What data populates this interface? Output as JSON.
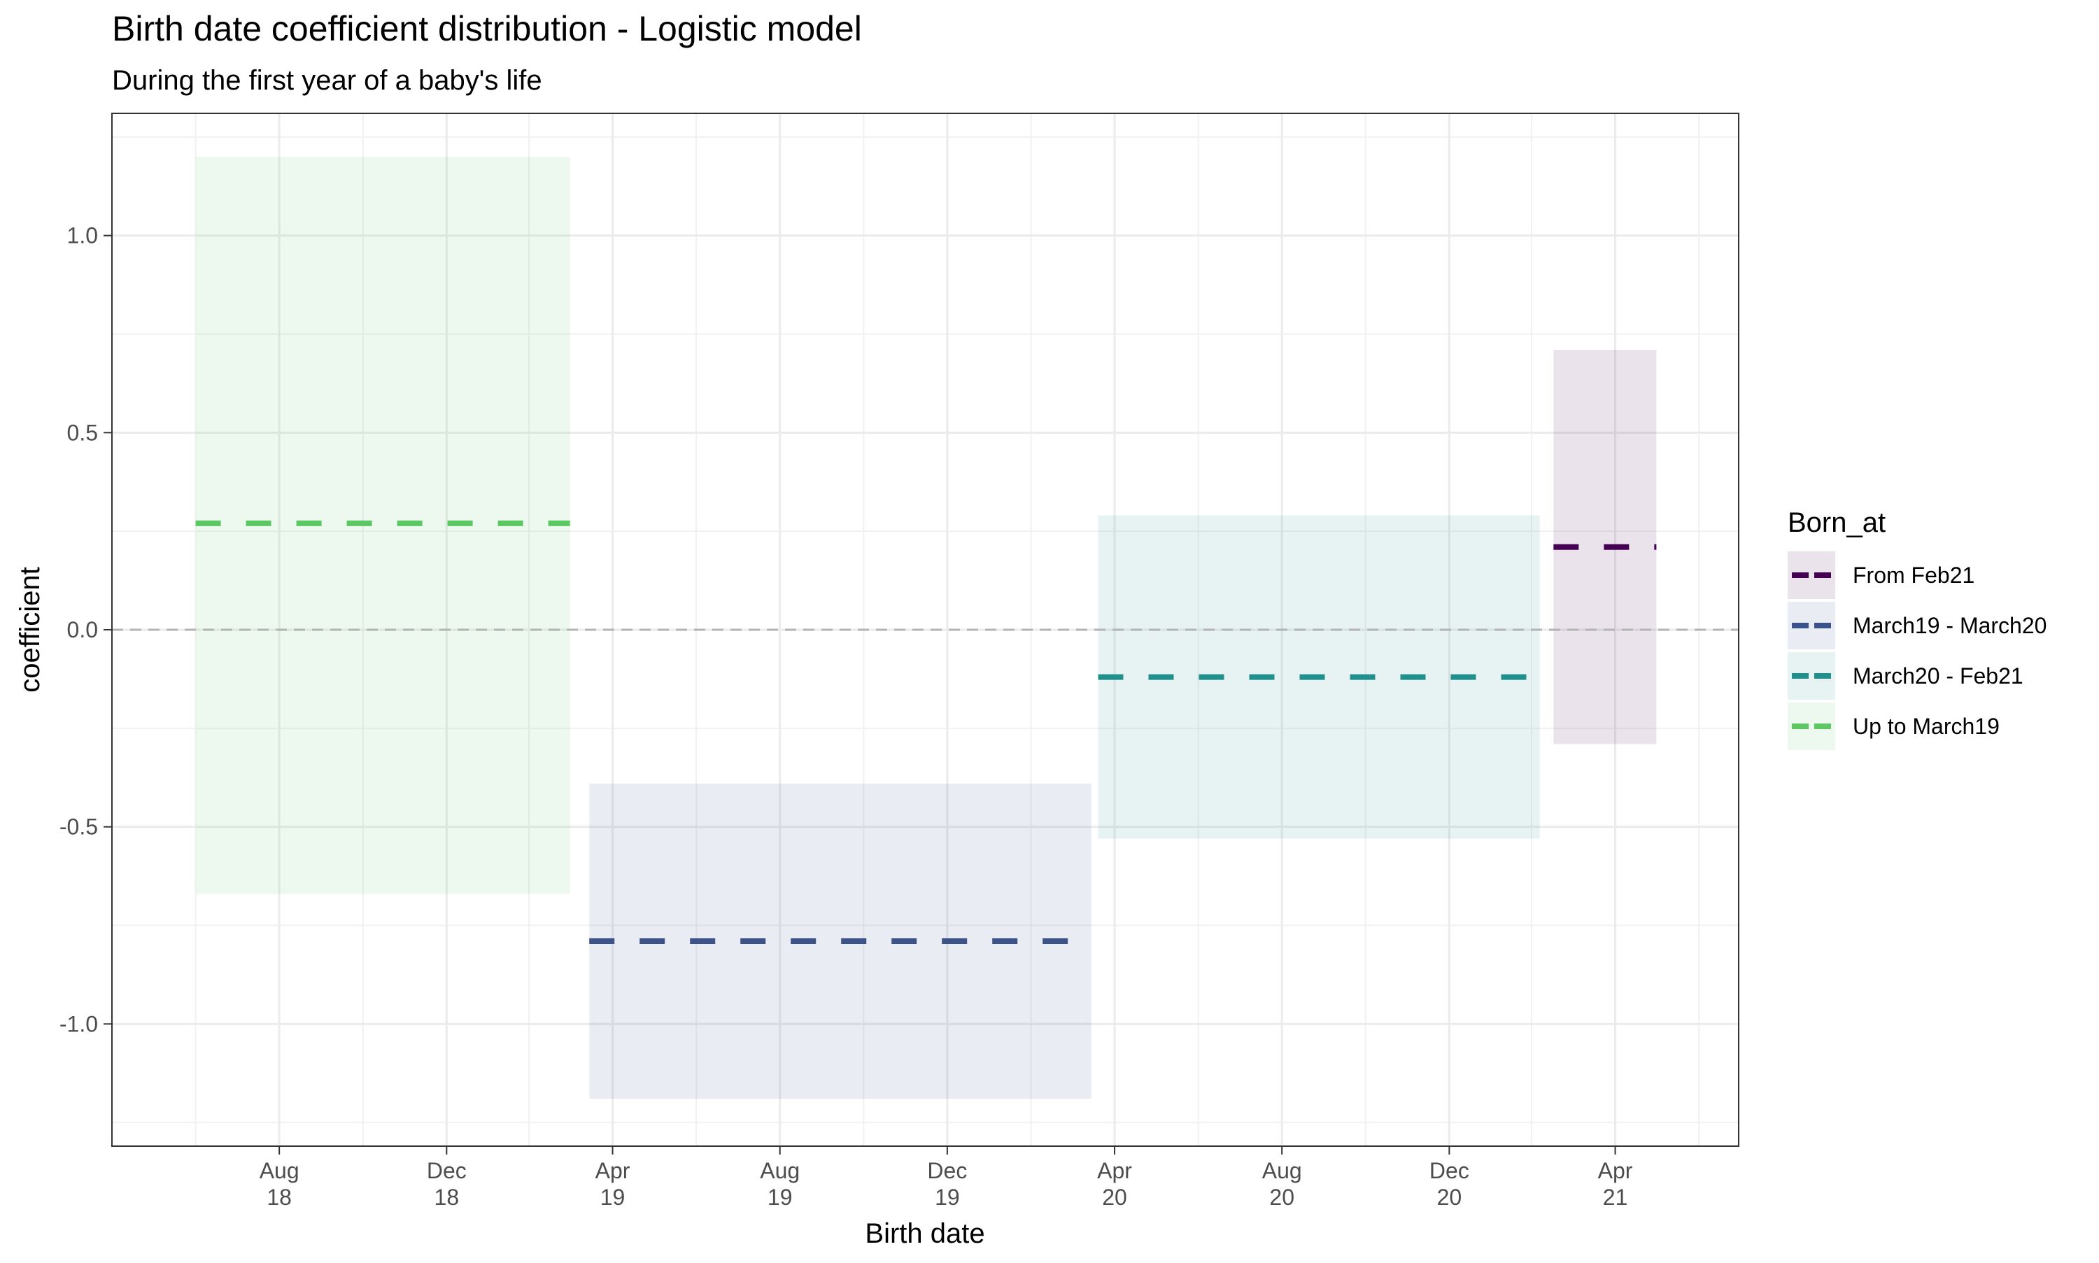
{
  "chart_data": {
    "type": "area",
    "title": "Birth date coefficient distribution - Logistic model",
    "subtitle": "During the first year of a baby's life",
    "xlabel": "Birth date",
    "ylabel": "coefficient",
    "xlim": [
      "2018-04-01",
      "2021-06-30"
    ],
    "ylim": [
      -1.31,
      1.31
    ],
    "y_ticks": [
      1.0,
      0.5,
      0.0,
      -0.5,
      -1.0
    ],
    "y_tick_labels": [
      "1.0",
      "0.5",
      "0.0",
      "-0.5",
      "-1.0"
    ],
    "x_ticks": [
      {
        "date": "2018-08-01",
        "month": "Aug",
        "year": "18"
      },
      {
        "date": "2018-12-01",
        "month": "Dec",
        "year": "18"
      },
      {
        "date": "2019-04-01",
        "month": "Apr",
        "year": "19"
      },
      {
        "date": "2019-08-01",
        "month": "Aug",
        "year": "19"
      },
      {
        "date": "2019-12-01",
        "month": "Dec",
        "year": "19"
      },
      {
        "date": "2020-04-01",
        "month": "Apr",
        "year": "20"
      },
      {
        "date": "2020-08-01",
        "month": "Aug",
        "year": "20"
      },
      {
        "date": "2020-12-01",
        "month": "Dec",
        "year": "20"
      },
      {
        "date": "2021-04-01",
        "month": "Apr",
        "year": "21"
      }
    ],
    "grid": true,
    "reference_line": {
      "y": 0.0,
      "style": "dashed"
    },
    "legend": {
      "title": "Born_at",
      "position": "right"
    },
    "series": [
      {
        "name": "From Feb21",
        "color": "#440154",
        "x_start": "2021-02-15",
        "x_end": "2021-05-01",
        "estimate": 0.21,
        "lower": -0.29,
        "upper": 0.71
      },
      {
        "name": "March19 - March20",
        "color": "#3B528B",
        "x_start": "2019-03-15",
        "x_end": "2020-03-15",
        "estimate": -0.79,
        "lower": -1.19,
        "upper": -0.39
      },
      {
        "name": "March20 - Feb21",
        "color": "#21908C",
        "x_start": "2020-03-20",
        "x_end": "2021-02-05",
        "estimate": -0.12,
        "lower": -0.53,
        "upper": 0.29
      },
      {
        "name": "Up to March19",
        "color": "#5DC863",
        "x_start": "2018-06-01",
        "x_end": "2019-03-01",
        "estimate": 0.27,
        "lower": -0.67,
        "upper": 1.2
      }
    ]
  }
}
